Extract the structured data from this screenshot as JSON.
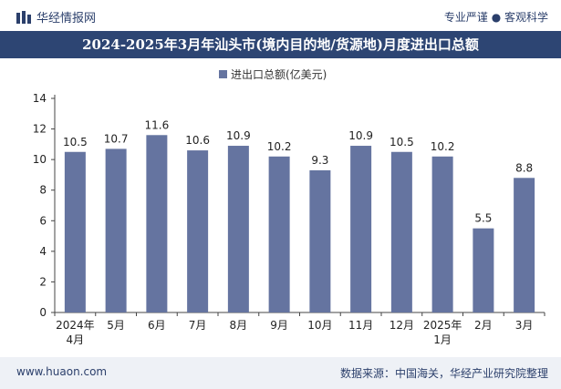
{
  "header": {
    "brand": "华经情报网",
    "tagline": "专业严谨 ● 客观科学",
    "title": "2024-2025年3月年汕头市(境内目的地/货源地)月度进出口总额"
  },
  "footer": {
    "website": "www.huaon.com",
    "source": "数据来源：中国海关，华经产业研究院整理"
  },
  "colors": {
    "bar": "#6574a0",
    "title_bg": "#2d4573",
    "accent": "#2b3f6b"
  },
  "chart_data": {
    "type": "bar",
    "title": "2024-2025年3月年汕头市(境内目的地/货源地)月度进出口总额",
    "legend": "进出口总额(亿美元)",
    "legend_position": "top-center",
    "categories": [
      "2024年\n4月",
      "5月",
      "6月",
      "7月",
      "8月",
      "9月",
      "10月",
      "11月",
      "12月",
      "2025年\n1月",
      "2月",
      "3月"
    ],
    "series": [
      {
        "name": "进出口总额(亿美元)",
        "values": [
          10.5,
          10.7,
          11.6,
          10.6,
          10.9,
          10.2,
          9.3,
          10.9,
          10.5,
          10.2,
          5.5,
          8.8
        ]
      }
    ],
    "value_labels": [
      "10.5",
      "10.7",
      "11.6",
      "10.6",
      "10.9",
      "10.2",
      "9.3",
      "10.9",
      "10.5",
      "10.2",
      "5.5",
      "8.8"
    ],
    "ylim": [
      0,
      14
    ],
    "yticks": [
      0,
      2,
      4,
      6,
      8,
      10,
      12,
      14
    ],
    "xlabel": "",
    "ylabel": "",
    "grid": false
  }
}
